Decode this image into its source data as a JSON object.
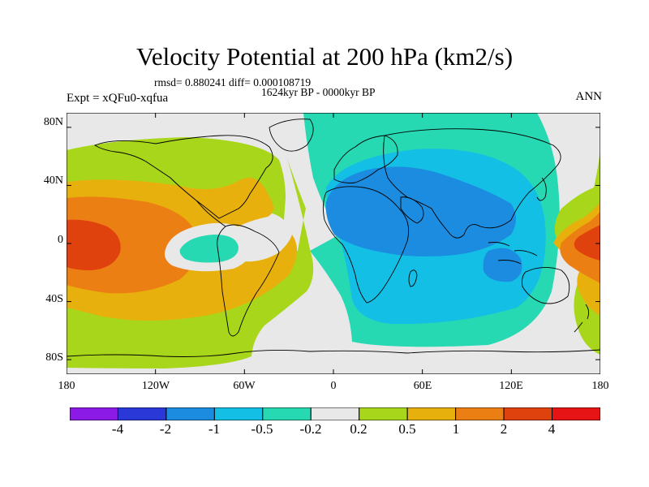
{
  "title": "Velocity Potential at 200 hPa (km2/s)",
  "stats": "rmsd= 0.880241 diff= 0.000108719",
  "period": "1624kyr BP - 0000kyr BP",
  "experiment": "Expt = xQFu0-xqfua",
  "season": "ANN",
  "map": {
    "projection": "cylindrical equidistant",
    "lon_range": [
      -180,
      180
    ],
    "lat_range": [
      -90,
      90
    ],
    "lat_ticks": [
      {
        "value": 80,
        "label": "80N"
      },
      {
        "value": 40,
        "label": "40N"
      },
      {
        "value": 0,
        "label": "0"
      },
      {
        "value": -40,
        "label": "40S"
      },
      {
        "value": -80,
        "label": "80S"
      }
    ],
    "lon_ticks": [
      {
        "value": -180,
        "label": "180"
      },
      {
        "value": -120,
        "label": "120W"
      },
      {
        "value": -60,
        "label": "60W"
      },
      {
        "value": 0,
        "label": "0"
      },
      {
        "value": 60,
        "label": "60E"
      },
      {
        "value": 120,
        "label": "120E"
      },
      {
        "value": 180,
        "label": "180"
      }
    ],
    "field_regions": [
      {
        "name": "eastern-hemisphere-negative",
        "level": "-0.5 to -0.2",
        "color": "#26d9b3"
      },
      {
        "name": "africa-indian-ocean-negative",
        "level": "-1 to -0.5",
        "color": "#14bfe6"
      },
      {
        "name": "north-africa-asia-negative",
        "level": "-2 to -1",
        "color": "#1c8ce0"
      },
      {
        "name": "pacific-americas-positive",
        "level": "0.2 to 0.5",
        "color": "#a8d61a"
      },
      {
        "name": "east-pacific-positive",
        "level": "0.5 to 1",
        "color": "#e8b00c"
      },
      {
        "name": "central-pacific-positive",
        "level": "1 to 2",
        "color": "#ec7f14"
      },
      {
        "name": "pacific-core-positive",
        "level": "2 to 4",
        "color": "#e0420e"
      },
      {
        "name": "east-pacific-small-negative",
        "level": "-0.5 to -0.2",
        "color": "#26d9b3"
      },
      {
        "name": "west-pacific-positive",
        "level": "0.2 to 4",
        "color": "#ec7f14"
      }
    ]
  },
  "colorbar": {
    "colors": [
      "#8c1ae6",
      "#2b38d8",
      "#1c8ce0",
      "#14bfe6",
      "#26d9b3",
      "#e8e8e8",
      "#a8d61a",
      "#e8b00c",
      "#ec7f14",
      "#e0420e",
      "#e61414"
    ],
    "labels": [
      "-4",
      "-2",
      "-1",
      "-0.5",
      "-0.2",
      "0.2",
      "0.5",
      "1",
      "2",
      "4"
    ]
  }
}
